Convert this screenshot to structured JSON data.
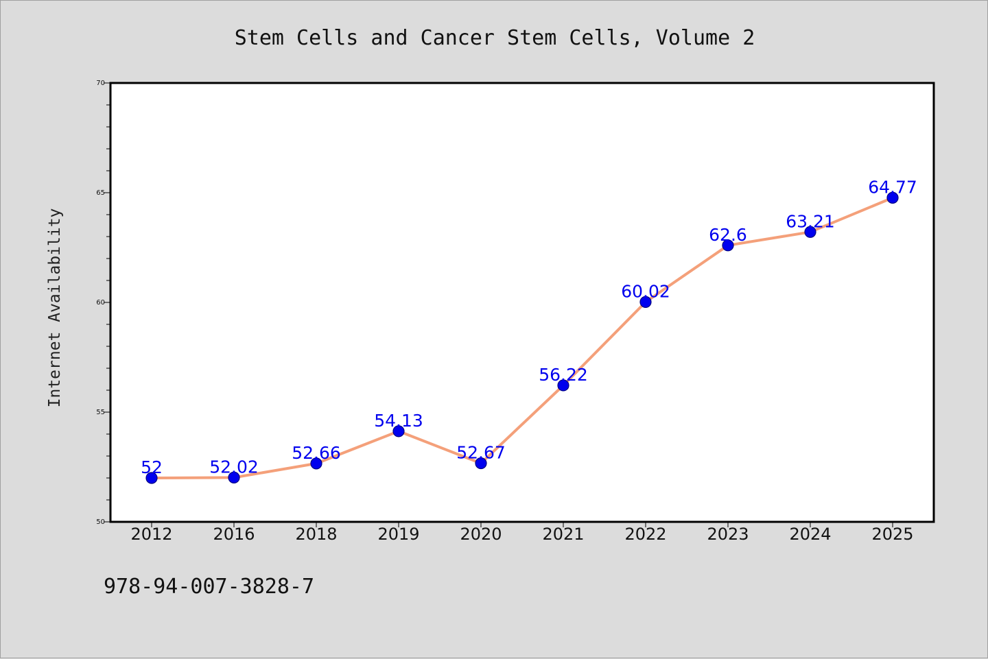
{
  "chart_data": {
    "type": "line",
    "title": "Stem Cells and Cancer Stem Cells, Volume 2",
    "xlabel": "",
    "ylabel": "Internet Availability",
    "categories": [
      "2012",
      "2016",
      "2018",
      "2019",
      "2020",
      "2021",
      "2022",
      "2023",
      "2024",
      "2025"
    ],
    "values": [
      52,
      52.02,
      52.66,
      54.13,
      52.67,
      56.22,
      60.02,
      62.6,
      63.21,
      64.77
    ],
    "data_labels": [
      "52",
      "52.02",
      "52.66",
      "54.13",
      "52.67",
      "56.22",
      "60.02",
      "62.6",
      "63.21",
      "64.77"
    ],
    "ylim": [
      50,
      70
    ],
    "yticks": [
      "50",
      "55",
      "60",
      "65",
      "70"
    ],
    "grid": false,
    "legend": "none",
    "colors": {
      "background": "#dcdcdc",
      "plot_background": "#ffffff",
      "line": "#f4a07a",
      "marker": "#0000ee",
      "marker_edge": "#000080",
      "data_label": "#0000ee"
    }
  },
  "footer": {
    "isbn": "978-94-007-3828-7"
  }
}
